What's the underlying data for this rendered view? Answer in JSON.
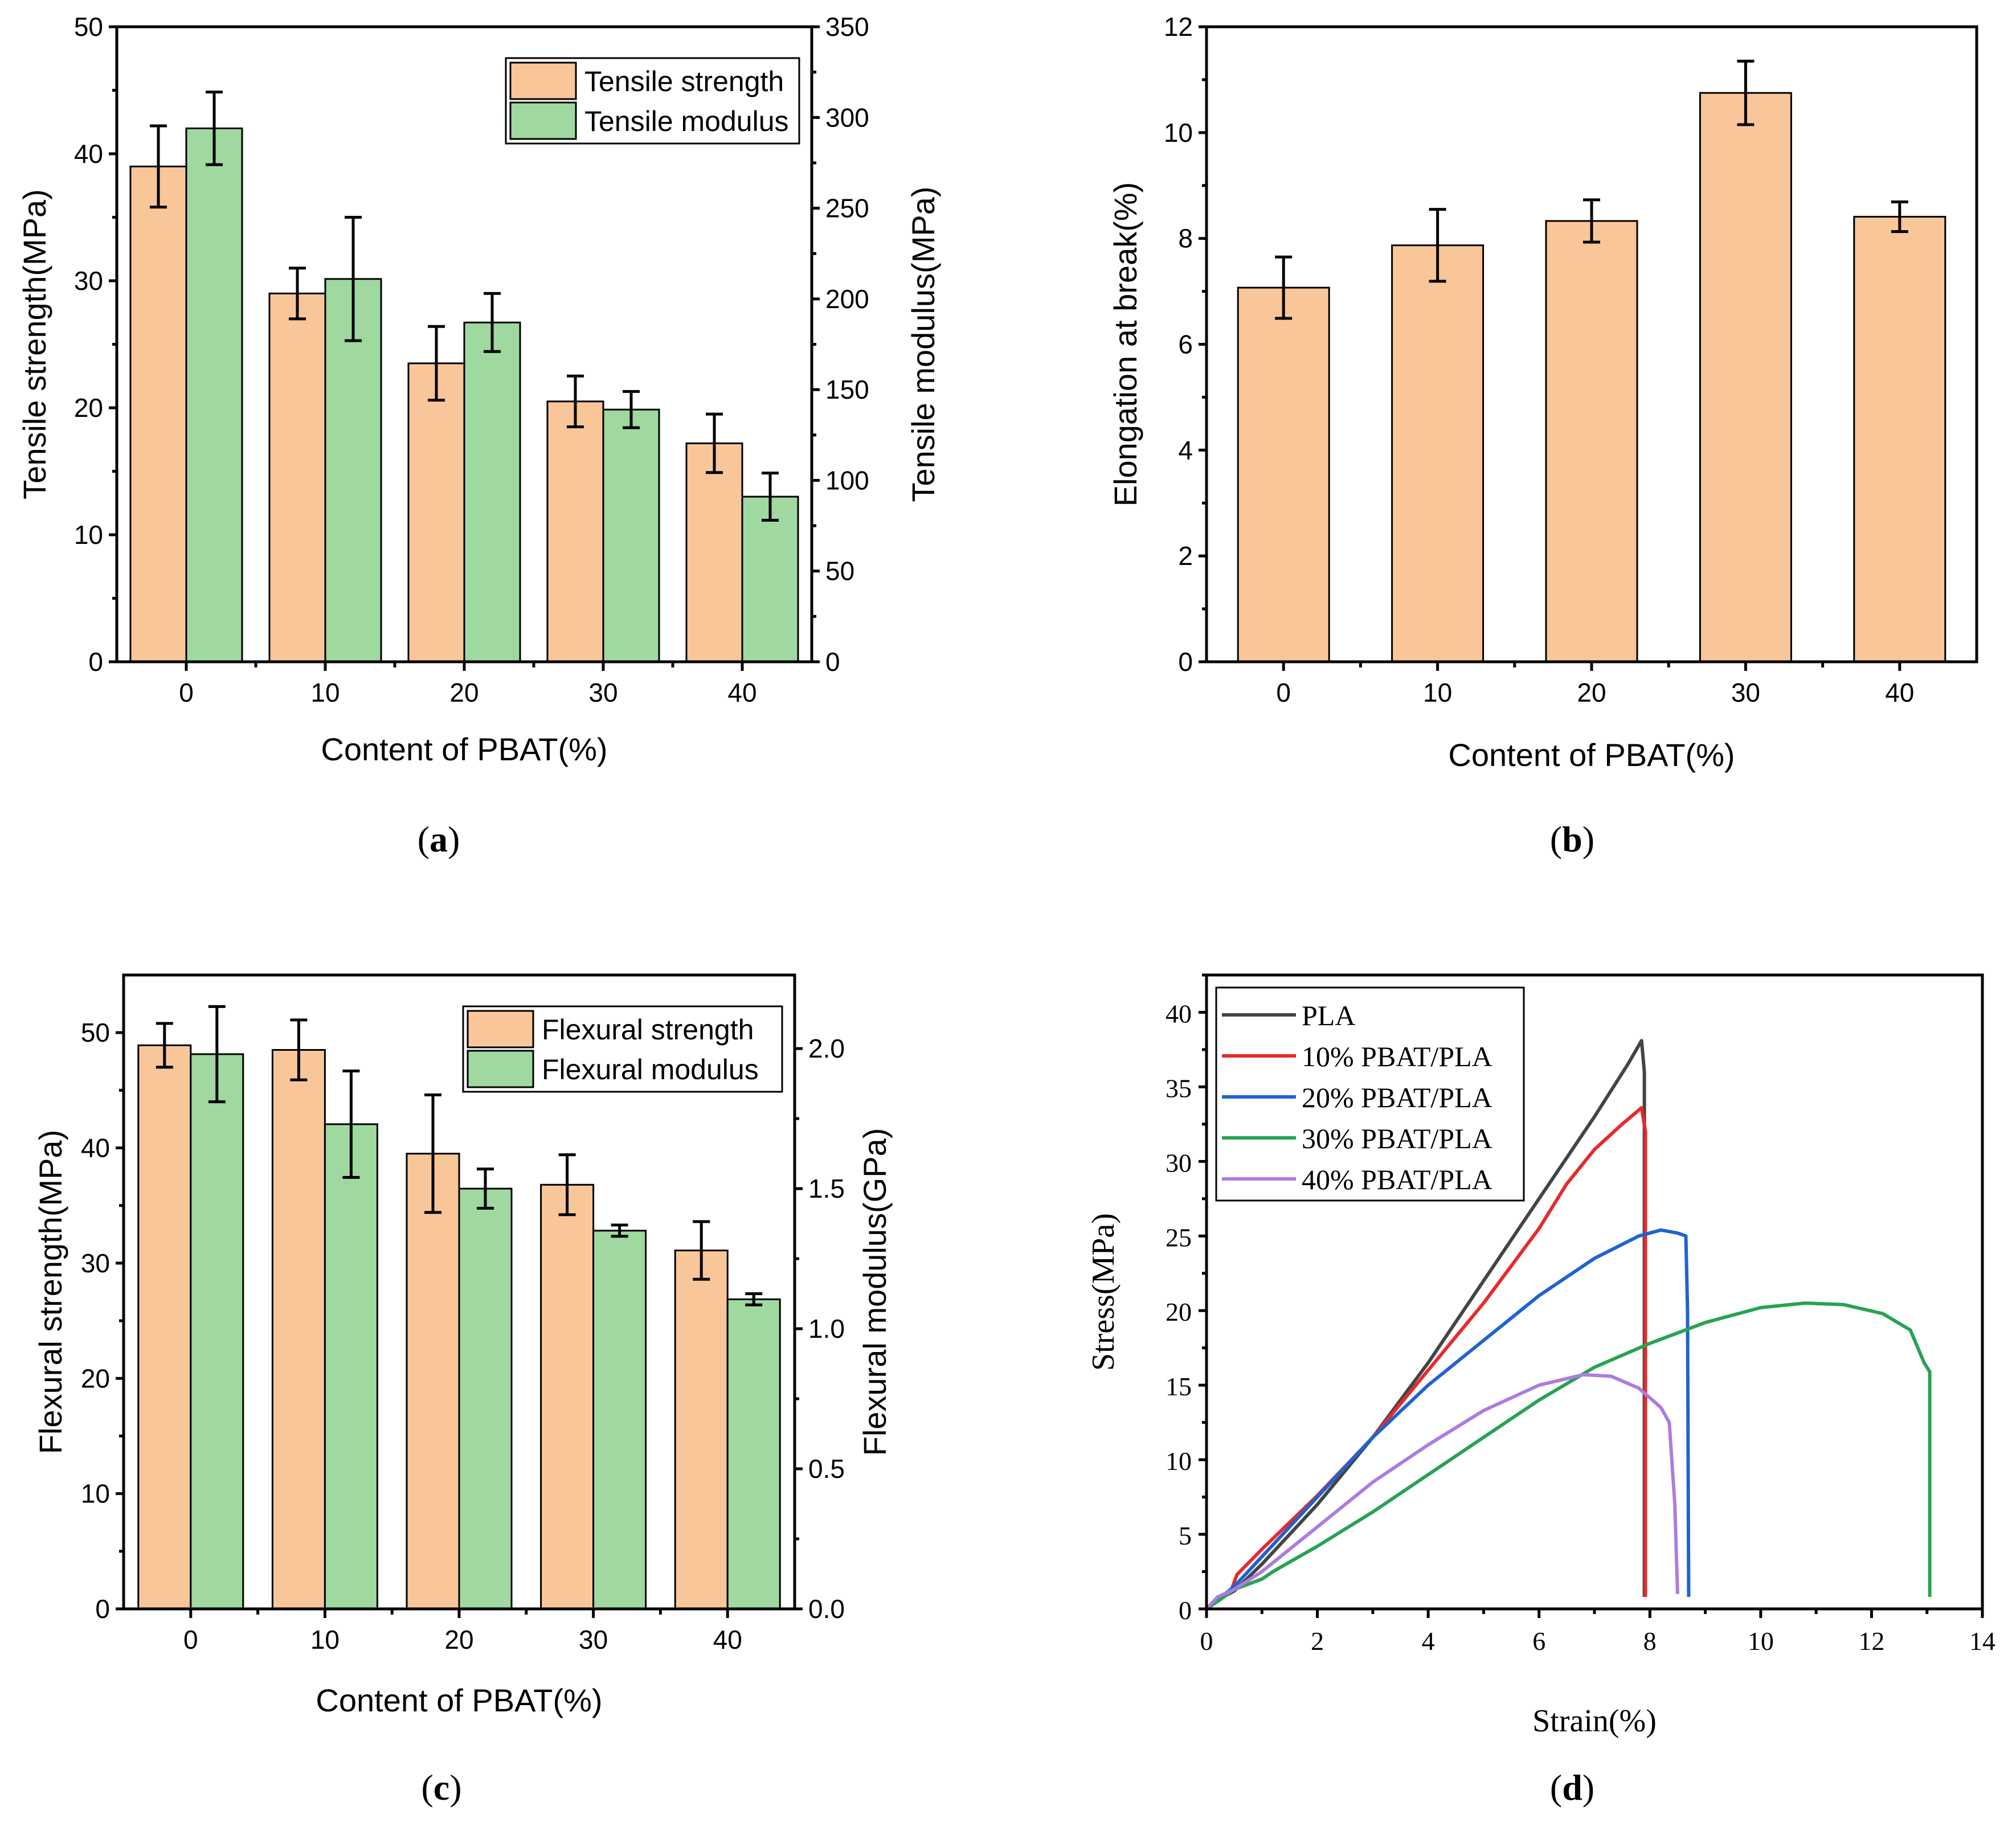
{
  "colors": {
    "strength_bar": "#f9c699",
    "modulus_bar": "#9fd9a0",
    "PLA": "#444444",
    "10% PBAT/PLA": "#e8292b",
    "20% PBAT/PLA": "#1f63d1",
    "30% PBAT/PLA": "#27a352",
    "40% PBAT/PLA": "#ab7ce0"
  },
  "chart_data": [
    {
      "id": "a",
      "type": "bar",
      "caption": {
        "open": "(",
        "letter": "a",
        "close": ")"
      },
      "xlabel": "Content of PBAT(%)",
      "ylabel": "Tensile strength(MPa)",
      "y2label": "Tensile modulus(MPa)",
      "categories": [
        "0",
        "10",
        "20",
        "30",
        "40"
      ],
      "ylim": [
        0,
        50
      ],
      "y2lim": [
        0,
        350
      ],
      "yticks": [
        "0",
        "10",
        "20",
        "30",
        "40",
        "50"
      ],
      "y2ticks": [
        "0",
        "50",
        "100",
        "150",
        "200",
        "250",
        "300",
        "350"
      ],
      "legend": "top-right",
      "series": [
        {
          "name": "Tensile strength",
          "axis": "left",
          "color": "#f9c699",
          "values": [
            39.0,
            29.0,
            23.5,
            20.5,
            17.2
          ],
          "errors": [
            3.2,
            2.0,
            2.9,
            2.0,
            2.3
          ]
        },
        {
          "name": "Tensile modulus",
          "axis": "right",
          "color": "#9fd9a0",
          "values": [
            294,
            211,
            187,
            139,
            91
          ],
          "errors": [
            20,
            34,
            16,
            10,
            13
          ]
        }
      ]
    },
    {
      "id": "b",
      "type": "bar",
      "caption": {
        "open": "(",
        "letter": "b",
        "close": ")"
      },
      "xlabel": "Content of PBAT(%)",
      "ylabel": "Elongation at break(%)",
      "categories": [
        "0",
        "10",
        "20",
        "30",
        "40"
      ],
      "ylim": [
        0,
        12
      ],
      "yticks": [
        "0",
        "2",
        "4",
        "6",
        "8",
        "10",
        "12"
      ],
      "series": [
        {
          "name": "Elongation at break",
          "axis": "left",
          "color": "#f9c699",
          "values": [
            7.07,
            7.87,
            8.33,
            10.75,
            8.41
          ],
          "errors": [
            0.58,
            0.68,
            0.4,
            0.6,
            0.28
          ]
        }
      ]
    },
    {
      "id": "c",
      "type": "bar",
      "caption": {
        "open": "(",
        "letter": "c",
        "close": ")"
      },
      "xlabel": "Content of PBAT(%)",
      "ylabel": "Flexural strength(MPa)",
      "y2label": "Flexural modulus(GPa)",
      "categories": [
        "0",
        "10",
        "20",
        "30",
        "40"
      ],
      "ylim": [
        0,
        55
      ],
      "y2lim": [
        0,
        2.2625
      ],
      "yticks": [
        "0",
        "10",
        "20",
        "30",
        "40",
        "50"
      ],
      "y2ticks": [
        "0.0",
        "0.5",
        "1.0",
        "1.5",
        "2.0"
      ],
      "legend": "top-right",
      "series": [
        {
          "name": "Flexural strength",
          "axis": "left",
          "color": "#f9c699",
          "values": [
            48.9,
            48.5,
            39.5,
            36.8,
            31.1
          ],
          "errors": [
            1.9,
            2.6,
            5.1,
            2.6,
            2.5
          ]
        },
        {
          "name": "Flexural modulus",
          "axis": "right",
          "color": "#9fd9a0",
          "values": [
            1.98,
            1.73,
            1.5,
            1.35,
            1.105
          ],
          "errors": [
            0.17,
            0.19,
            0.07,
            0.02,
            0.02
          ]
        }
      ]
    },
    {
      "id": "d",
      "type": "line",
      "caption": {
        "open": "(",
        "letter": "d",
        "close": ")"
      },
      "xlabel": "Strain(%)",
      "ylabel": "Stress(MPa)",
      "xlim": [
        0,
        14
      ],
      "ylim": [
        0,
        42.5
      ],
      "xticks": [
        "0",
        "2",
        "4",
        "6",
        "8",
        "10",
        "12",
        "14"
      ],
      "yticks": [
        "0",
        "5",
        "10",
        "15",
        "20",
        "25",
        "30",
        "35",
        "40"
      ],
      "legend": "top-left",
      "series": [
        {
          "name": "PLA",
          "color": "#444444",
          "points": [
            [
              0,
              0
            ],
            [
              0.3,
              0.8
            ],
            [
              0.5,
              1.2
            ],
            [
              1,
              3
            ],
            [
              2,
              7
            ],
            [
              3,
              11.5
            ],
            [
              4,
              16.5
            ],
            [
              5,
              22
            ],
            [
              6,
              27.5
            ],
            [
              7,
              33
            ],
            [
              7.6,
              36.5
            ],
            [
              7.85,
              38.1
            ],
            [
              7.9,
              36
            ],
            [
              7.9,
              0.8
            ]
          ]
        },
        {
          "name": "10% PBAT/PLA",
          "color": "#e8292b",
          "points": [
            [
              0,
              0
            ],
            [
              0.2,
              0.7
            ],
            [
              0.45,
              1.3
            ],
            [
              0.55,
              2.3
            ],
            [
              1,
              4
            ],
            [
              2,
              7.6
            ],
            [
              3,
              11.5
            ],
            [
              4,
              16
            ],
            [
              5,
              20.5
            ],
            [
              5.5,
              23
            ],
            [
              6,
              25.5
            ],
            [
              6.5,
              28.5
            ],
            [
              7,
              30.8
            ],
            [
              7.5,
              32.5
            ],
            [
              7.85,
              33.6
            ],
            [
              7.92,
              32
            ],
            [
              7.92,
              0.8
            ]
          ]
        },
        {
          "name": "20% PBAT/PLA",
          "color": "#1f63d1",
          "points": [
            [
              0,
              0
            ],
            [
              0.2,
              0.6
            ],
            [
              0.5,
              1.5
            ],
            [
              1,
              3.5
            ],
            [
              2,
              7.5
            ],
            [
              3,
              11.5
            ],
            [
              4,
              15
            ],
            [
              5,
              18
            ],
            [
              6,
              21
            ],
            [
              7,
              23.5
            ],
            [
              7.8,
              25
            ],
            [
              8.2,
              25.4
            ],
            [
              8.5,
              25.2
            ],
            [
              8.65,
              25
            ],
            [
              8.68,
              20
            ],
            [
              8.7,
              0.8
            ]
          ]
        },
        {
          "name": "30% PBAT/PLA",
          "color": "#27a352",
          "points": [
            [
              0,
              0
            ],
            [
              0.2,
              0.5
            ],
            [
              0.5,
              1.3
            ],
            [
              1,
              2
            ],
            [
              1.2,
              2.5
            ],
            [
              2,
              4.2
            ],
            [
              3,
              6.5
            ],
            [
              4,
              9
            ],
            [
              5,
              11.5
            ],
            [
              6,
              14
            ],
            [
              7,
              16.2
            ],
            [
              8,
              17.8
            ],
            [
              9,
              19.2
            ],
            [
              10,
              20.2
            ],
            [
              10.8,
              20.5
            ],
            [
              11.5,
              20.4
            ],
            [
              12.2,
              19.8
            ],
            [
              12.7,
              18.7
            ],
            [
              12.95,
              16.5
            ],
            [
              13.05,
              15.9
            ],
            [
              13.05,
              10
            ],
            [
              13.05,
              0.8
            ]
          ]
        },
        {
          "name": "40% PBAT/PLA",
          "color": "#ab7ce0",
          "points": [
            [
              0,
              0
            ],
            [
              0.2,
              0.8
            ],
            [
              0.5,
              1.3
            ],
            [
              1,
              2.5
            ],
            [
              2,
              5.5
            ],
            [
              3,
              8.5
            ],
            [
              4,
              11
            ],
            [
              5,
              13.3
            ],
            [
              6,
              15
            ],
            [
              6.8,
              15.7
            ],
            [
              7.3,
              15.6
            ],
            [
              7.8,
              14.8
            ],
            [
              8.2,
              13.5
            ],
            [
              8.35,
              12.5
            ],
            [
              8.45,
              7
            ],
            [
              8.5,
              1
            ]
          ]
        }
      ]
    }
  ]
}
